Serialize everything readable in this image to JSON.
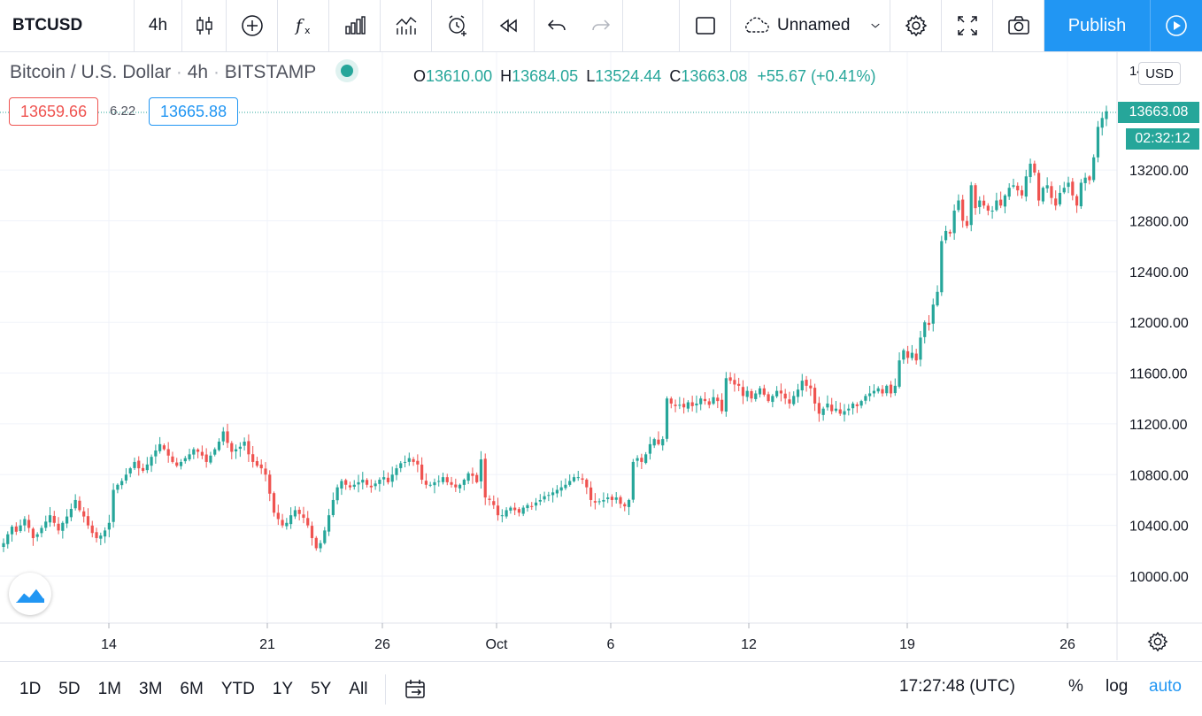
{
  "toolbar": {
    "symbol": "BTCUSD",
    "interval": "4h",
    "layout_name": "Unnamed",
    "publish_label": "Publish",
    "icons": [
      "candles-icon",
      "add-circle-icon",
      "indicators-fx-icon",
      "bar-chart-icon",
      "compare-icon",
      "alert-clock-icon",
      "replay-icon",
      "undo-icon",
      "redo-icon",
      "rect-icon",
      "cloud-icon",
      "chevron-down-icon",
      "gear-icon",
      "fullscreen-icon",
      "camera-icon",
      "play-icon"
    ]
  },
  "legend": {
    "title": "Bitcoin / U.S. Dollar",
    "interval": "4h",
    "exchange": "BITSTAMP",
    "o_key": "O",
    "o": "13610.00",
    "h_key": "H",
    "h": "13684.05",
    "l_key": "L",
    "l": "13524.44",
    "c_key": "C",
    "c": "13663.08",
    "change": "+55.67 (+0.41%)"
  },
  "quote": {
    "bid": "13659.66",
    "spread": "6.22",
    "ask": "13665.88"
  },
  "price_scale": {
    "currency": "USD",
    "last_price": "13663.08",
    "countdown": "02:32:12",
    "partial_top_label": "14"
  },
  "colors": {
    "up": "#26a69a",
    "down": "#ef5350",
    "accent": "#2196f3",
    "grid": "#f0f3fa"
  },
  "chart_data": {
    "type": "candlestick",
    "title": "Bitcoin / U.S. Dollar",
    "ylabel": "USD",
    "ylim": [
      9650,
      14170
    ],
    "y_ticks": [
      "10000.00",
      "10400.00",
      "10800.00",
      "11200.00",
      "11600.00",
      "12000.00",
      "12400.00",
      "12800.00",
      "13200.00"
    ],
    "x_ticks": [
      "14",
      "21",
      "26",
      "Oct",
      "6",
      "12",
      "19",
      "26"
    ],
    "closes": [
      10260,
      10330,
      10390,
      10350,
      10400,
      10450,
      10380,
      10300,
      10330,
      10380,
      10430,
      10480,
      10420,
      10360,
      10420,
      10470,
      10530,
      10600,
      10520,
      10470,
      10400,
      10340,
      10300,
      10320,
      10360,
      10420,
      10680,
      10720,
      10750,
      10800,
      10850,
      10900,
      10850,
      10830,
      10880,
      10940,
      10990,
      11040,
      11000,
      10950,
      10900,
      10870,
      10900,
      10930,
      10960,
      11000,
      10980,
      10950,
      10900,
      10950,
      11000,
      11060,
      11140,
      11050,
      10980,
      11000,
      11020,
      11060,
      10960,
      10900,
      10870,
      10850,
      10800,
      10650,
      10500,
      10450,
      10400,
      10420,
      10480,
      10520,
      10490,
      10460,
      10400,
      10300,
      10220,
      10260,
      10360,
      10480,
      10600,
      10700,
      10750,
      10720,
      10700,
      10720,
      10740,
      10760,
      10720,
      10700,
      10730,
      10760,
      10780,
      10740,
      10800,
      10850,
      10890,
      10900,
      10930,
      10900,
      10880,
      10760,
      10720,
      10720,
      10740,
      10750,
      10780,
      10740,
      10720,
      10700,
      10720,
      10760,
      10810,
      10790,
      10740,
      10920,
      10620,
      10600,
      10560,
      10480,
      10480,
      10520,
      10540,
      10520,
      10500,
      10540,
      10560,
      10550,
      10580,
      10600,
      10630,
      10640,
      10660,
      10680,
      10700,
      10720,
      10750,
      10780,
      10780,
      10760,
      10700,
      10600,
      10580,
      10590,
      10600,
      10620,
      10600,
      10620,
      10570,
      10550,
      10600,
      10900,
      10930,
      10900,
      10960,
      11040,
      11080,
      11040,
      11080,
      11400,
      11360,
      11340,
      11350,
      11330,
      11370,
      11340,
      11360,
      11400,
      11380,
      11350,
      11410,
      11380,
      11300,
      11560,
      11540,
      11510,
      11500,
      11420,
      11460,
      11400,
      11440,
      11480,
      11430,
      11380,
      11420,
      11460,
      11440,
      11400,
      11360,
      11420,
      11470,
      11540,
      11500,
      11480,
      11360,
      11280,
      11320,
      11360,
      11300,
      11320,
      11280,
      11300,
      11320,
      11360,
      11340,
      11380,
      11420,
      11440,
      11460,
      11480,
      11440,
      11500,
      11440,
      11500,
      11700,
      11780,
      11720,
      11760,
      11700,
      11880,
      12000,
      11980,
      12140,
      12240,
      12640,
      12720,
      12700,
      12880,
      12960,
      12800,
      12760,
      13080,
      12900,
      12960,
      12920,
      12880,
      12880,
      12960,
      12920,
      13000,
      13060,
      13080,
      13040,
      13000,
      13150,
      13250,
      13180,
      12960,
      13060,
      13080,
      12980,
      12920,
      13020,
      13060,
      13100,
      13000,
      12920,
      13100,
      13140,
      13120,
      13300,
      13540,
      13610,
      13663.08
    ]
  },
  "timeframes": [
    "1D",
    "5D",
    "1M",
    "3M",
    "6M",
    "YTD",
    "1Y",
    "5Y",
    "All"
  ],
  "bottom": {
    "clock": "17:27:48 (UTC)",
    "percent": "%",
    "log": "log",
    "auto": "auto"
  }
}
